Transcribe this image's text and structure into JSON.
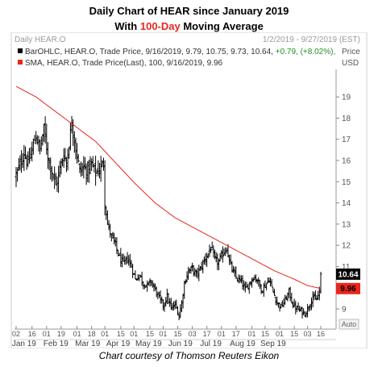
{
  "title_line1": "Daily Chart of HEAR since January 2019",
  "title_line2_prefix": "With ",
  "title_line2_accent": "100-Day",
  "title_line2_suffix": " Moving Average",
  "footer": "Chart courtesy of Thomson Reuters Eikon",
  "header": {
    "panel_title": "Daily HEAR.O",
    "date_range": "1/2/2019 - 9/27/2019 (EST)",
    "price_label": "Price",
    "currency": "USD",
    "legend_ohlc": "BarOHLC, HEAR.O, Trade Price, 9/16/2019, 9.79, 10.75, 9.73, 10.64, ",
    "legend_ohlc_change": "+0.79, (+8.02%),",
    "legend_sma": "SMA, HEAR.O, Trade Price(Last),  100, 9/16/2019, 9.96",
    "auto_label": "Auto"
  },
  "colors": {
    "bars": "#000000",
    "sma": "#e8261c",
    "change_positive": "#1f8f1f",
    "accent": "#e8261c",
    "last_price_box": "#000000",
    "sma_box": "#e8261c"
  },
  "chart_data": {
    "type": "ohlc",
    "title": "Daily Chart of HEAR since January 2019",
    "ylabel": "Price USD",
    "ylim": [
      8.2,
      20.3
    ],
    "y_ticks": [
      9,
      10,
      11,
      12,
      13,
      14,
      15,
      16,
      17,
      18,
      19
    ],
    "last_price": "10.64",
    "last_sma": "9.96",
    "x_ticks": [
      {
        "day": 0,
        "label": "02"
      },
      {
        "day": 12,
        "label": "16"
      },
      {
        "day": 23,
        "label": "01"
      },
      {
        "day": 34,
        "label": "19"
      },
      {
        "day": 46,
        "label": "01"
      },
      {
        "day": 57,
        "label": "18"
      },
      {
        "day": 67,
        "label": "01"
      },
      {
        "day": 79,
        "label": "15"
      },
      {
        "day": 89,
        "label": "01"
      },
      {
        "day": 101,
        "label": "15"
      },
      {
        "day": 111,
        "label": "01"
      },
      {
        "day": 122,
        "label": "15"
      },
      {
        "day": 133,
        "label": "03"
      },
      {
        "day": 144,
        "label": "17"
      },
      {
        "day": 155,
        "label": "01"
      },
      {
        "day": 166,
        "label": "17"
      },
      {
        "day": 178,
        "label": "01"
      },
      {
        "day": 188,
        "label": "15"
      },
      {
        "day": 199,
        "label": "01"
      },
      {
        "day": 210,
        "label": "15"
      },
      {
        "day": 220,
        "label": "03"
      },
      {
        "day": 230,
        "label": "16"
      }
    ],
    "month_labels": [
      {
        "day": 6,
        "label": "Jan 19"
      },
      {
        "day": 30,
        "label": "Feb 19"
      },
      {
        "day": 54,
        "label": "Mar 19"
      },
      {
        "day": 77,
        "label": "Apr 19"
      },
      {
        "day": 100,
        "label": "May 19"
      },
      {
        "day": 124,
        "label": "Jun 19"
      },
      {
        "day": 147,
        "label": "Jul 19"
      },
      {
        "day": 171,
        "label": "Aug 19"
      },
      {
        "day": 194,
        "label": "Sep 19"
      }
    ],
    "close_anchors": [
      [
        0,
        15.3
      ],
      [
        3,
        15.8
      ],
      [
        6,
        16.4
      ],
      [
        9,
        15.8
      ],
      [
        12,
        16.5
      ],
      [
        15,
        17.2
      ],
      [
        18,
        16.5
      ],
      [
        21,
        17.5
      ],
      [
        24,
        16.2
      ],
      [
        27,
        15.5
      ],
      [
        30,
        14.8
      ],
      [
        33,
        15.6
      ],
      [
        36,
        16.3
      ],
      [
        38,
        15.9
      ],
      [
        40,
        16.8
      ],
      [
        42,
        17.8
      ],
      [
        45,
        16.6
      ],
      [
        48,
        15.5
      ],
      [
        51,
        15.7
      ],
      [
        54,
        15.5
      ],
      [
        57,
        15.8
      ],
      [
        60,
        15.4
      ],
      [
        63,
        15.6
      ],
      [
        66,
        15.9
      ],
      [
        67,
        14.1
      ],
      [
        69,
        13.0
      ],
      [
        72,
        12.4
      ],
      [
        75,
        12.0
      ],
      [
        78,
        11.4
      ],
      [
        81,
        11.1
      ],
      [
        84,
        11.4
      ],
      [
        87,
        11.0
      ],
      [
        90,
        10.4
      ],
      [
        93,
        10.6
      ],
      [
        96,
        10.2
      ],
      [
        99,
        10.1
      ],
      [
        102,
        10.3
      ],
      [
        105,
        9.9
      ],
      [
        108,
        9.5
      ],
      [
        111,
        9.2
      ],
      [
        114,
        9.6
      ],
      [
        117,
        9.0
      ],
      [
        120,
        9.2
      ],
      [
        123,
        8.7
      ],
      [
        125,
        9.3
      ],
      [
        127,
        10.2
      ],
      [
        130,
        10.8
      ],
      [
        133,
        10.9
      ],
      [
        136,
        10.6
      ],
      [
        139,
        10.9
      ],
      [
        142,
        11.3
      ],
      [
        145,
        11.6
      ],
      [
        147,
        11.9
      ],
      [
        150,
        11.3
      ],
      [
        153,
        11.2
      ],
      [
        156,
        11.6
      ],
      [
        159,
        11.9
      ],
      [
        161,
        11.2
      ],
      [
        164,
        10.7
      ],
      [
        167,
        10.4
      ],
      [
        170,
        10.3
      ],
      [
        173,
        9.9
      ],
      [
        176,
        10.2
      ],
      [
        179,
        10.5
      ],
      [
        182,
        10.4
      ],
      [
        185,
        9.9
      ],
      [
        188,
        10.1
      ],
      [
        191,
        10.4
      ],
      [
        194,
        9.8
      ],
      [
        197,
        9.3
      ],
      [
        200,
        9.1
      ],
      [
        203,
        9.4
      ],
      [
        206,
        9.8
      ],
      [
        209,
        9.2
      ],
      [
        212,
        9.0
      ],
      [
        215,
        8.9
      ],
      [
        218,
        8.8
      ],
      [
        220,
        9.0
      ],
      [
        222,
        9.3
      ],
      [
        224,
        9.6
      ],
      [
        226,
        9.4
      ],
      [
        228,
        9.6
      ],
      [
        229,
        9.85
      ],
      [
        230,
        10.64
      ]
    ],
    "sma_anchors": [
      [
        0,
        19.5
      ],
      [
        15,
        19.0
      ],
      [
        30,
        18.3
      ],
      [
        45,
        17.6
      ],
      [
        60,
        16.9
      ],
      [
        75,
        15.9
      ],
      [
        90,
        14.9
      ],
      [
        105,
        14.0
      ],
      [
        120,
        13.3
      ],
      [
        135,
        12.8
      ],
      [
        150,
        12.3
      ],
      [
        165,
        11.8
      ],
      [
        180,
        11.3
      ],
      [
        195,
        10.8
      ],
      [
        210,
        10.4
      ],
      [
        220,
        10.1
      ],
      [
        230,
        9.96
      ]
    ],
    "last_bar": {
      "date": "9/16/2019",
      "open": 9.79,
      "high": 10.75,
      "low": 9.73,
      "close": 10.64
    }
  }
}
